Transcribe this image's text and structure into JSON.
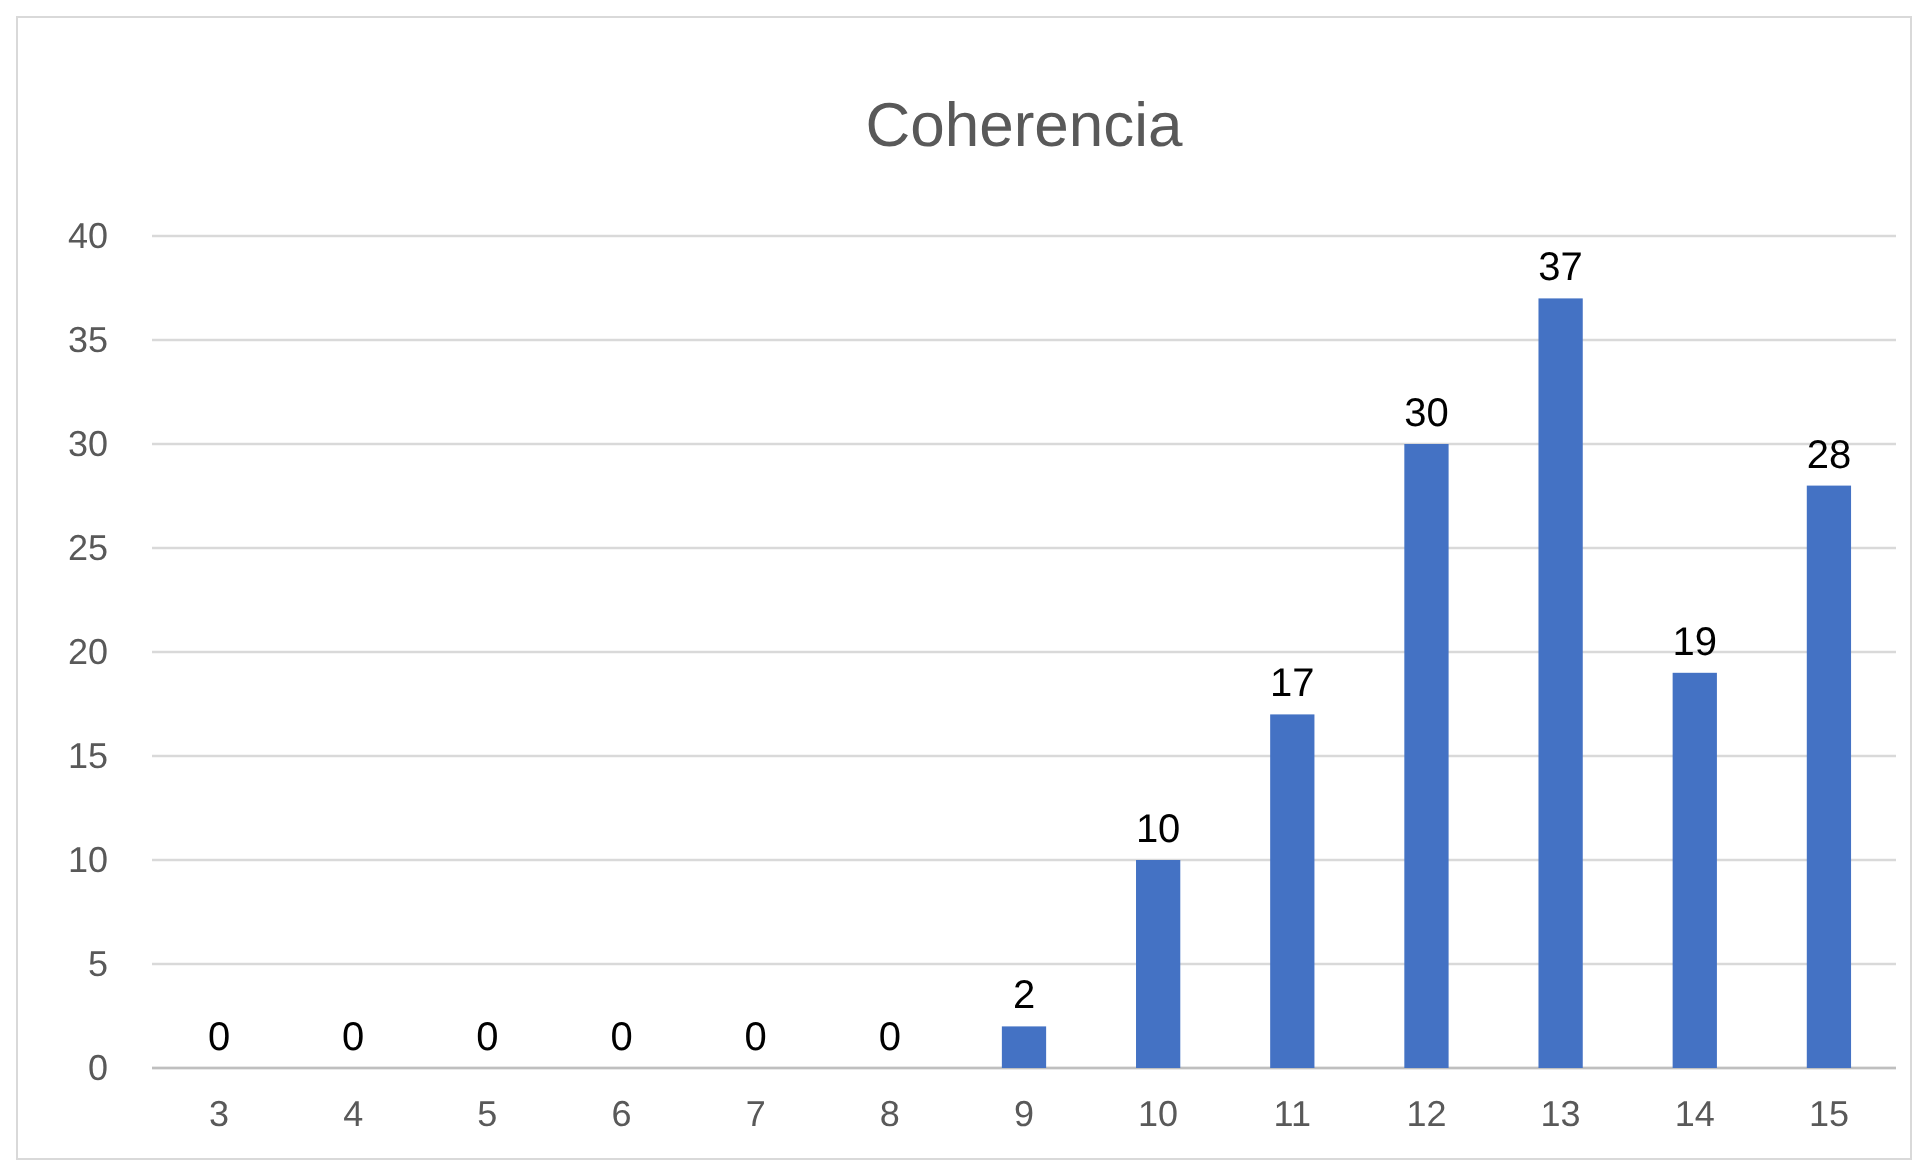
{
  "chart_data": {
    "type": "bar",
    "title": "Coherencia",
    "categories": [
      "3",
      "4",
      "5",
      "6",
      "7",
      "8",
      "9",
      "10",
      "11",
      "12",
      "13",
      "14",
      "15"
    ],
    "values": [
      0,
      0,
      0,
      0,
      0,
      0,
      2,
      10,
      17,
      30,
      37,
      19,
      28
    ],
    "color": "#4472c4",
    "ylim": [
      0,
      40
    ],
    "yticks": [
      0,
      5,
      10,
      15,
      20,
      25,
      30,
      35,
      40
    ],
    "grid": "y",
    "data_labels": true
  }
}
